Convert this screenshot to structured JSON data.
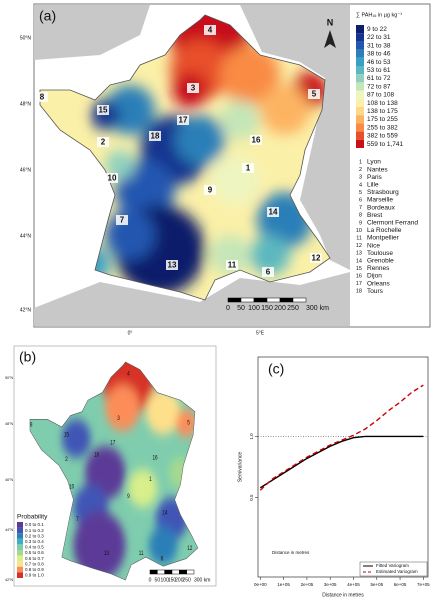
{
  "panel_a": {
    "label": "(a)",
    "legend_title": "∑ PAH₁₆ in µg kg⁻¹",
    "classes": [
      {
        "label": "9 to 22",
        "color": "#0b1f6b"
      },
      {
        "label": "22 to 31",
        "color": "#16348f"
      },
      {
        "label": "31 to 38",
        "color": "#2257b0"
      },
      {
        "label": "38 to 46",
        "color": "#2c7fb8"
      },
      {
        "label": "46 to 53",
        "color": "#3a9fc4"
      },
      {
        "label": "53 to 61",
        "color": "#5cb8c0"
      },
      {
        "label": "61 to 72",
        "color": "#8fd0c0"
      },
      {
        "label": "72 to 87",
        "color": "#c4e6b8"
      },
      {
        "label": "87 to 108",
        "color": "#eef5c0"
      },
      {
        "label": "108 to 138",
        "color": "#fbf0a8"
      },
      {
        "label": "138 to 175",
        "color": "#fdd888"
      },
      {
        "label": "175 to 255",
        "color": "#fdb462"
      },
      {
        "label": "255 to 382",
        "color": "#f98b45"
      },
      {
        "label": "382 to 559",
        "color": "#e8502a"
      },
      {
        "label": "559 to 1,741",
        "color": "#c8101a"
      }
    ],
    "cities": [
      {
        "number": "1",
        "name": "Lyon"
      },
      {
        "number": "2",
        "name": "Nantes"
      },
      {
        "number": "3",
        "name": "Paris"
      },
      {
        "number": "4",
        "name": "Lille"
      },
      {
        "number": "5",
        "name": "Strasbourg"
      },
      {
        "number": "6",
        "name": "Marseille"
      },
      {
        "number": "7",
        "name": "Bordeaux"
      },
      {
        "number": "8",
        "name": "Brest"
      },
      {
        "number": "9",
        "name": "Clermont Ferrand"
      },
      {
        "number": "10",
        "name": "La Rochelle"
      },
      {
        "number": "11",
        "name": "Montpellier"
      },
      {
        "number": "12",
        "name": "Nice"
      },
      {
        "number": "13",
        "name": "Toulouse"
      },
      {
        "number": "14",
        "name": "Grenoble"
      },
      {
        "number": "15",
        "name": "Rennes"
      },
      {
        "number": "16",
        "name": "Dijon"
      },
      {
        "number": "17",
        "name": "Orleans"
      },
      {
        "number": "18",
        "name": "Tours"
      }
    ],
    "lat_labels": [
      "50°N",
      "48°N",
      "46°N",
      "44°N",
      "42°N"
    ],
    "lon_labels": [
      "0°",
      "5°E"
    ],
    "north": "N",
    "scale_labels": [
      "0",
      "50",
      "100",
      "150",
      "200",
      "250",
      "300 km"
    ]
  },
  "panel_b": {
    "label": "(b)",
    "legend_title": "Probability",
    "classes": [
      {
        "label": "0.0 to 0.1",
        "color": "#5b3a98"
      },
      {
        "label": "0.1 to 0.2",
        "color": "#3f55b5"
      },
      {
        "label": "0.2 to 0.3",
        "color": "#2c7fb8"
      },
      {
        "label": "0.3 to 0.4",
        "color": "#3fb0c2"
      },
      {
        "label": "0.4 to 0.5",
        "color": "#7fcdae"
      },
      {
        "label": "0.5 to 0.6",
        "color": "#a6d98e"
      },
      {
        "label": "0.6 to 0.7",
        "color": "#d9ef8b"
      },
      {
        "label": "0.7 to 0.8",
        "color": "#fee08b"
      },
      {
        "label": "0.8 to 0.9",
        "color": "#fc8d59"
      },
      {
        "label": "0.9 to 1.0",
        "color": "#d73027"
      }
    ]
  },
  "chart_data": {
    "type": "line",
    "label": "(c)",
    "x_label": "Distance in metres",
    "y_label": "Semivariance",
    "annotation": "Distance in metres",
    "x": [
      0,
      50000,
      100000,
      150000,
      200000,
      250000,
      300000,
      350000,
      400000,
      450000,
      500000,
      550000,
      600000,
      650000,
      700000
    ],
    "series": [
      {
        "name": "Fitted Variogram",
        "color": "#000000",
        "dashed": false,
        "values": [
          0.58,
          0.64,
          0.7,
          0.76,
          0.82,
          0.87,
          0.92,
          0.96,
          0.99,
          1.0,
          1.0,
          1.0,
          1.0,
          1.0,
          1.0
        ]
      },
      {
        "name": "Estimated Variogram",
        "color": "#cc0000",
        "dashed": true,
        "values": [
          0.56,
          0.65,
          0.71,
          0.77,
          0.83,
          0.88,
          0.93,
          0.97,
          1.01,
          1.06,
          1.13,
          1.21,
          1.28,
          1.36,
          1.42
        ]
      }
    ],
    "hline": 1,
    "xlim": [
      -10000,
      720000
    ],
    "ylim": [
      -0.15,
      1.65
    ],
    "xticks": [
      {
        "value": 0,
        "label": "0e+00"
      },
      {
        "value": 100000,
        "label": "1e+05"
      },
      {
        "value": 200000,
        "label": "2e+05"
      },
      {
        "value": 300000,
        "label": "3e+05"
      },
      {
        "value": 400000,
        "label": "4e+05"
      },
      {
        "value": 500000,
        "label": "5e+05"
      },
      {
        "value": 600000,
        "label": "6e+05"
      },
      {
        "value": 700000,
        "label": "7e+05"
      }
    ],
    "yticks": [
      0.5,
      {
        "value": 1,
        "label": "1.0"
      }
    ]
  }
}
